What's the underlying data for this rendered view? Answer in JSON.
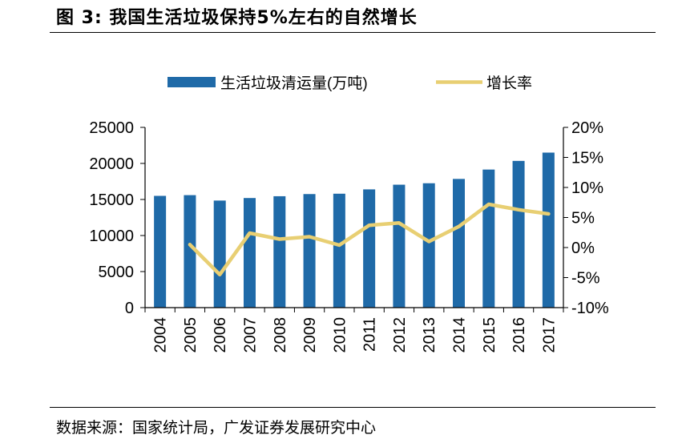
{
  "header": {
    "title": "图 3: 我国生活垃圾保持5%左右的自然增长"
  },
  "footer": {
    "source": "数据来源：国家统计局，广发证券发展研究中心"
  },
  "colors": {
    "bar": "#1f6aa8",
    "line": "#e8cf73",
    "axis": "#000000"
  },
  "chart_data": {
    "type": "bar+line",
    "categories": [
      "2004",
      "2005",
      "2006",
      "2007",
      "2008",
      "2009",
      "2010",
      "2011",
      "2012",
      "2013",
      "2014",
      "2015",
      "2016",
      "2017"
    ],
    "series": [
      {
        "name": "生活垃圾清运量(万吨)",
        "type": "bar",
        "axis": "left",
        "values": [
          15500,
          15600,
          14850,
          15200,
          15450,
          15750,
          15800,
          16400,
          17050,
          17250,
          17850,
          19150,
          20350,
          21500
        ]
      },
      {
        "name": "增长率",
        "type": "line",
        "axis": "right",
        "values": [
          null,
          0.5,
          -4.5,
          2.4,
          1.4,
          1.8,
          0.4,
          3.7,
          4.1,
          1.0,
          3.5,
          7.2,
          6.3,
          5.6
        ]
      }
    ],
    "y_left": {
      "lim": [
        0,
        25000
      ],
      "ticks": [
        "0",
        "5000",
        "10000",
        "15000",
        "20000",
        "25000"
      ]
    },
    "y_right": {
      "lim": [
        -10,
        20
      ],
      "ticks": [
        "-10%",
        "-5%",
        "0%",
        "5%",
        "10%",
        "15%",
        "20%"
      ]
    },
    "legend_position": "top-center",
    "grid": false
  }
}
